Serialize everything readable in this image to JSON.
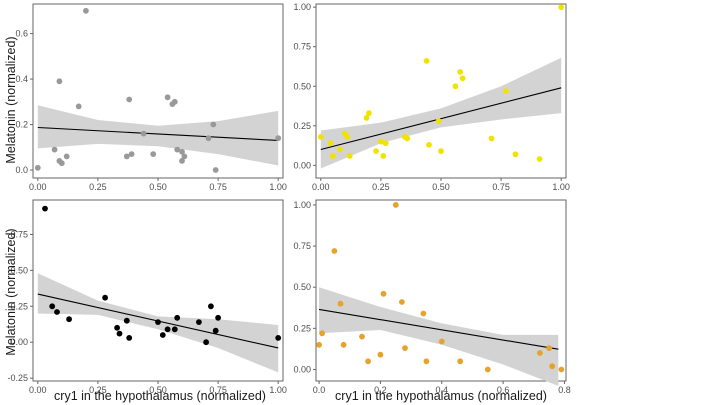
{
  "figure": {
    "shared_ylabel": "Melatonin (normalized)",
    "shared_xlabel": "cry1 in the hypothalamus (normalized)"
  },
  "chart_data": [
    {
      "type": "scatter",
      "panel": "top-left",
      "color": "#999999",
      "xlim": [
        -0.02,
        1.02
      ],
      "ylim": [
        -0.035,
        0.73
      ],
      "xticks": [
        0.0,
        0.25,
        0.5,
        0.75,
        1.0
      ],
      "xtick_labels": [
        "0.00",
        "0.25",
        "0.50",
        "0.75",
        "1.00"
      ],
      "yticks": [
        0.0,
        0.2,
        0.4,
        0.6
      ],
      "ytick_labels": [
        "0.0",
        "0.2",
        "0.4",
        "0.6"
      ],
      "ylabel": "Melatonin (normalized)",
      "xlabel": "",
      "fit": {
        "y_at_x0": 0.187,
        "y_at_x1": 0.13
      },
      "band": {
        "x": [
          0,
          0.25,
          0.5,
          0.75,
          1.0
        ],
        "lower": [
          0.095,
          0.115,
          0.105,
          0.07,
          0.02
        ],
        "upper": [
          0.285,
          0.22,
          0.195,
          0.215,
          0.26
        ]
      },
      "points": [
        [
          0.0,
          0.01
        ],
        [
          0.07,
          0.09
        ],
        [
          0.09,
          0.39
        ],
        [
          0.09,
          0.04
        ],
        [
          0.1,
          0.03
        ],
        [
          0.12,
          0.06
        ],
        [
          0.17,
          0.28
        ],
        [
          0.2,
          0.7
        ],
        [
          0.37,
          0.06
        ],
        [
          0.38,
          0.31
        ],
        [
          0.39,
          0.07
        ],
        [
          0.44,
          0.16
        ],
        [
          0.48,
          0.07
        ],
        [
          0.54,
          0.32
        ],
        [
          0.56,
          0.29
        ],
        [
          0.57,
          0.3
        ],
        [
          0.58,
          0.09
        ],
        [
          0.6,
          0.08
        ],
        [
          0.6,
          0.04
        ],
        [
          0.61,
          0.06
        ],
        [
          0.71,
          0.14
        ],
        [
          0.73,
          0.2
        ],
        [
          0.74,
          0.0
        ],
        [
          1.0,
          0.14
        ]
      ]
    },
    {
      "type": "scatter",
      "panel": "top-right",
      "color": "#f2e200",
      "xlim": [
        -0.02,
        1.02
      ],
      "ylim": [
        -0.08,
        1.02
      ],
      "xticks": [
        0.0,
        0.25,
        0.5,
        0.75,
        1.0
      ],
      "xtick_labels": [
        "0.00",
        "0.25",
        "0.50",
        "0.75",
        "1.00"
      ],
      "yticks": [
        0.0,
        0.25,
        0.5,
        0.75,
        1.0
      ],
      "ytick_labels": [
        "0.00",
        "0.25",
        "0.50",
        "0.75",
        "1.00"
      ],
      "ylabel": "",
      "xlabel": "",
      "fit": {
        "y_at_x0": 0.1,
        "y_at_x1": 0.49
      },
      "band": {
        "x": [
          0,
          0.25,
          0.5,
          0.75,
          1.0
        ],
        "lower": [
          -0.02,
          0.14,
          0.24,
          0.29,
          0.33
        ],
        "upper": [
          0.22,
          0.27,
          0.36,
          0.5,
          0.68
        ]
      },
      "points": [
        [
          0.0,
          0.18
        ],
        [
          0.04,
          0.14
        ],
        [
          0.05,
          0.06
        ],
        [
          0.08,
          0.1
        ],
        [
          0.1,
          0.2
        ],
        [
          0.11,
          0.18
        ],
        [
          0.12,
          0.06
        ],
        [
          0.19,
          0.3
        ],
        [
          0.2,
          0.33
        ],
        [
          0.23,
          0.09
        ],
        [
          0.25,
          0.15
        ],
        [
          0.26,
          0.06
        ],
        [
          0.27,
          0.14
        ],
        [
          0.35,
          0.18
        ],
        [
          0.36,
          0.17
        ],
        [
          0.44,
          0.66
        ],
        [
          0.45,
          0.13
        ],
        [
          0.49,
          0.28
        ],
        [
          0.5,
          0.09
        ],
        [
          0.56,
          0.5
        ],
        [
          0.58,
          0.59
        ],
        [
          0.59,
          0.55
        ],
        [
          0.71,
          0.17
        ],
        [
          0.77,
          0.47
        ],
        [
          0.81,
          0.07
        ],
        [
          0.91,
          0.04
        ],
        [
          1.0,
          1.0
        ]
      ]
    },
    {
      "type": "scatter",
      "panel": "bottom-left",
      "color": "#000000",
      "xlim": [
        -0.02,
        1.02
      ],
      "ylim": [
        -0.27,
        0.99
      ],
      "xticks": [
        0.0,
        0.25,
        0.5,
        0.75,
        1.0
      ],
      "xtick_labels": [
        "0.00",
        "0.25",
        "0.50",
        "0.75",
        "1.00"
      ],
      "yticks": [
        -0.25,
        0.0,
        0.25,
        0.5,
        0.75
      ],
      "ytick_labels": [
        "-0.25",
        "0.00",
        "0.25",
        "0.50",
        "0.75"
      ],
      "ylabel": "Melatonin (normalized)",
      "xlabel": "cry1 in the hypothalamus (normalized)",
      "fit": {
        "y_at_x0": 0.335,
        "y_at_x1": -0.04
      },
      "band": {
        "x": [
          0,
          0.25,
          0.5,
          0.75,
          1.0
        ],
        "lower": [
          0.2,
          0.19,
          0.09,
          -0.04,
          -0.21
        ],
        "upper": [
          0.48,
          0.29,
          0.18,
          0.16,
          0.12
        ]
      },
      "points": [
        [
          0.03,
          0.93
        ],
        [
          0.06,
          0.25
        ],
        [
          0.08,
          0.21
        ],
        [
          0.13,
          0.16
        ],
        [
          0.28,
          0.31
        ],
        [
          0.33,
          0.1
        ],
        [
          0.34,
          0.06
        ],
        [
          0.37,
          0.15
        ],
        [
          0.38,
          0.03
        ],
        [
          0.5,
          0.14
        ],
        [
          0.52,
          0.05
        ],
        [
          0.54,
          0.09
        ],
        [
          0.57,
          0.09
        ],
        [
          0.58,
          0.17
        ],
        [
          0.67,
          0.14
        ],
        [
          0.7,
          0.0
        ],
        [
          0.72,
          0.25
        ],
        [
          0.74,
          0.08
        ],
        [
          0.75,
          0.17
        ],
        [
          1.0,
          0.03
        ]
      ]
    },
    {
      "type": "scatter",
      "panel": "bottom-right",
      "color": "#e6a32a",
      "xlim": [
        -0.01,
        0.805
      ],
      "ylim": [
        -0.07,
        1.03
      ],
      "xticks": [
        0.0,
        0.2,
        0.4,
        0.6,
        0.8
      ],
      "xtick_labels": [
        "0.0",
        "0.2",
        "0.4",
        "0.6",
        "0.8"
      ],
      "yticks": [
        0.0,
        0.25,
        0.5,
        0.75,
        1.0
      ],
      "ytick_labels": [
        "0.00",
        "0.25",
        "0.50",
        "0.75",
        "1.00"
      ],
      "ylabel": "",
      "xlabel": "cry1 in the hypothalamus (normalized)",
      "fit": {
        "y_at_x0": 0.365,
        "y_at_x1": 0.055
      },
      "band": {
        "x": [
          0,
          0.2,
          0.4,
          0.6,
          0.78
        ],
        "lower": [
          0.22,
          0.24,
          0.15,
          0.03,
          -0.1
        ],
        "upper": [
          0.5,
          0.38,
          0.28,
          0.21,
          0.21
        ]
      },
      "points": [
        [
          0.0,
          0.15
        ],
        [
          0.01,
          0.22
        ],
        [
          0.05,
          0.72
        ],
        [
          0.07,
          0.4
        ],
        [
          0.08,
          0.15
        ],
        [
          0.14,
          0.2
        ],
        [
          0.16,
          0.05
        ],
        [
          0.2,
          0.09
        ],
        [
          0.21,
          0.46
        ],
        [
          0.25,
          1.0
        ],
        [
          0.27,
          0.41
        ],
        [
          0.28,
          0.13
        ],
        [
          0.34,
          0.34
        ],
        [
          0.35,
          0.05
        ],
        [
          0.4,
          0.17
        ],
        [
          0.46,
          0.05
        ],
        [
          0.55,
          0.0
        ],
        [
          0.72,
          0.1
        ],
        [
          0.75,
          0.13
        ],
        [
          0.76,
          0.02
        ],
        [
          0.79,
          0.0
        ]
      ]
    }
  ]
}
